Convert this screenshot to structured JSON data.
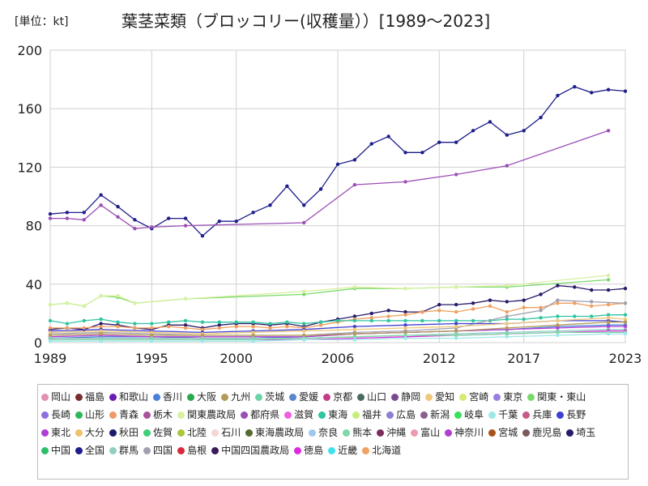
{
  "chart_data": {
    "type": "line",
    "title": "葉茎菜類（ブロッコリー(収穫量））[1989～2023]",
    "unit_label": "[単位：kt]",
    "xlim": [
      1989,
      2023
    ],
    "ylim": [
      0,
      200
    ],
    "yticks": [
      0,
      40,
      80,
      120,
      160,
      200
    ],
    "xticks": [
      1989,
      1995,
      2000,
      2006,
      2012,
      2017,
      2023
    ],
    "grid": true,
    "legend_position": "bottom",
    "legend": [
      {
        "name": "岡山",
        "color": "#e38fb0"
      },
      {
        "name": "福島",
        "color": "#7b2d2d"
      },
      {
        "name": "和歌山",
        "color": "#6a1bb0"
      },
      {
        "name": "香川",
        "color": "#4a7fd6"
      },
      {
        "name": "大阪",
        "color": "#2aa84a"
      },
      {
        "name": "九州",
        "color": "#b59a5a"
      },
      {
        "name": "茨城",
        "color": "#6ed3a6"
      },
      {
        "name": "愛媛",
        "color": "#5b86c9"
      },
      {
        "name": "京都",
        "color": "#c43d8a"
      },
      {
        "name": "山口",
        "color": "#4a6b60"
      },
      {
        "name": "静岡",
        "color": "#7a4a8f"
      },
      {
        "name": "愛知",
        "color": "#f1c77a"
      },
      {
        "name": "宮崎",
        "color": "#d8ea72"
      },
      {
        "name": "東京",
        "color": "#9b7fe0"
      },
      {
        "name": "関東・東山",
        "color": "#7ad96a"
      },
      {
        "name": "長崎",
        "color": "#8f6fe0"
      },
      {
        "name": "山形",
        "color": "#2fb85a"
      },
      {
        "name": "青森",
        "color": "#f09a6a"
      },
      {
        "name": "栃木",
        "color": "#a8539b"
      },
      {
        "name": "関東農政局",
        "color": "#d8f0a0"
      },
      {
        "name": "都府県",
        "color": "#9b4fb5"
      },
      {
        "name": "滋賀",
        "color": "#ef5fe0"
      },
      {
        "name": "東海",
        "color": "#2fc5a0"
      },
      {
        "name": "福井",
        "color": "#c8ee7a"
      },
      {
        "name": "広島",
        "color": "#8f7fd0"
      },
      {
        "name": "新潟",
        "color": "#8a5f8f"
      },
      {
        "name": "岐阜",
        "color": "#3be05a"
      },
      {
        "name": "千葉",
        "color": "#9fe8e8"
      },
      {
        "name": "兵庫",
        "color": "#c85a8a"
      },
      {
        "name": "長野",
        "color": "#3f3fd0"
      },
      {
        "name": "東北",
        "color": "#b13fd6"
      },
      {
        "name": "大分",
        "color": "#f0c070"
      },
      {
        "name": "秋田",
        "color": "#1b1b6a"
      },
      {
        "name": "佐賀",
        "color": "#3fd07a"
      },
      {
        "name": "北陸",
        "color": "#a8c83a"
      },
      {
        "name": "石川",
        "color": "#f5d5d5"
      },
      {
        "name": "東海農政局",
        "color": "#556b2f"
      },
      {
        "name": "奈良",
        "color": "#9fc8ef"
      },
      {
        "name": "熊本",
        "color": "#7fd8a8"
      },
      {
        "name": "沖縄",
        "color": "#7a2d5a"
      },
      {
        "name": "富山",
        "color": "#f09ab0"
      },
      {
        "name": "神奈川",
        "color": "#b040d0"
      },
      {
        "name": "宮城",
        "color": "#a8521a"
      },
      {
        "name": "鹿児島",
        "color": "#7a5a5a"
      },
      {
        "name": "埼玉",
        "color": "#2a1a6a"
      },
      {
        "name": "中国",
        "color": "#2fbf6a"
      },
      {
        "name": "全国",
        "color": "#1e1e8c"
      },
      {
        "name": "群馬",
        "color": "#8fd0c0"
      },
      {
        "name": "四国",
        "color": "#a0a0b0"
      },
      {
        "name": "島根",
        "color": "#d82a3a"
      },
      {
        "name": "中国四国農政局",
        "color": "#3a1a5a"
      },
      {
        "name": "徳島",
        "color": "#e02ae0"
      },
      {
        "name": "近畿",
        "color": "#40e0f0"
      },
      {
        "name": "北海道",
        "color": "#f0a060"
      }
    ],
    "series": [
      {
        "name": "全国",
        "color": "#1e1e8c",
        "x": [
          1989,
          1990,
          1991,
          1992,
          1993,
          1994,
          1995,
          1996,
          1997,
          1998,
          1999,
          2000,
          2001,
          2002,
          2003,
          2004,
          2005,
          2006,
          2007,
          2008,
          2009,
          2010,
          2011,
          2012,
          2013,
          2014,
          2015,
          2016,
          2017,
          2018,
          2019,
          2020,
          2021,
          2022,
          2023
        ],
        "y": [
          88,
          89,
          89,
          101,
          93,
          84,
          78,
          85,
          85,
          73,
          83,
          83,
          89,
          94,
          107,
          94,
          105,
          122,
          125,
          136,
          141,
          130,
          130,
          137,
          137,
          145,
          151,
          142,
          145,
          154,
          169,
          175,
          171,
          173,
          172
        ]
      },
      {
        "name": "都府県",
        "color": "#9b4fb5",
        "x": [
          1989,
          1990,
          1991,
          1992,
          1993,
          1994,
          1995,
          1997,
          2004,
          2007,
          2010,
          2013,
          2016,
          2022
        ],
        "y": [
          85,
          85,
          84,
          94,
          86,
          78,
          79,
          80,
          82,
          108,
          110,
          115,
          121,
          145
        ]
      },
      {
        "name": "関東・東山",
        "color": "#7ad96a",
        "x": [
          1989,
          1990,
          1991,
          1992,
          1993,
          1994,
          1997,
          2004,
          2007,
          2010,
          2013,
          2016,
          2022
        ],
        "y": [
          26,
          27,
          25,
          32,
          31,
          27,
          30,
          33,
          37,
          37,
          38,
          38,
          43
        ]
      },
      {
        "name": "関東農政局",
        "color": "#d8f0a0",
        "x": [
          1989,
          1990,
          1991,
          1992,
          1993,
          1994,
          1997,
          2004,
          2007,
          2010,
          2013,
          2016,
          2022
        ],
        "y": [
          26,
          27,
          25,
          32,
          32,
          27,
          30,
          35,
          38,
          37,
          38,
          39,
          46
        ]
      },
      {
        "name": "埼玉",
        "color": "#2a1a6a",
        "x": [
          1989,
          1990,
          1991,
          1992,
          1993,
          1994,
          1995,
          1996,
          1997,
          1998,
          1999,
          2000,
          2001,
          2002,
          2003,
          2004,
          2005,
          2006,
          2007,
          2008,
          2009,
          2010,
          2011,
          2012,
          2013,
          2014,
          2015,
          2016,
          2017,
          2018,
          2019,
          2020,
          2021,
          2022,
          2023
        ],
        "y": [
          9,
          10,
          9,
          13,
          12,
          10,
          9,
          12,
          12,
          10,
          12,
          13,
          13,
          12,
          13,
          11,
          14,
          16,
          18,
          20,
          22,
          21,
          21,
          26,
          26,
          27,
          29,
          28,
          29,
          33,
          39,
          38,
          36,
          36,
          37
        ]
      },
      {
        "name": "北海道",
        "color": "#f0a060",
        "x": [
          1989,
          1990,
          1991,
          1992,
          1993,
          1994,
          1995,
          1996,
          1997,
          1998,
          1999,
          2000,
          2001,
          2002,
          2003,
          2004,
          2005,
          2006,
          2007,
          2008,
          2009,
          2010,
          2011,
          2012,
          2013,
          2014,
          2015,
          2016,
          2017,
          2018,
          2019,
          2020,
          2021,
          2022,
          2023
        ],
        "y": [
          10,
          10,
          10,
          11,
          11,
          10,
          10,
          11,
          10,
          9,
          10,
          11,
          11,
          10,
          11,
          10,
          12,
          14,
          16,
          17,
          18,
          19,
          21,
          22,
          21,
          23,
          25,
          21,
          24,
          24,
          27,
          27,
          25,
          26,
          27
        ]
      },
      {
        "name": "東海",
        "color": "#2fc5a0",
        "x": [
          1989,
          1990,
          1991,
          1992,
          1993,
          1994,
          1995,
          1996,
          1997,
          1998,
          1999,
          2000,
          2001,
          2002,
          2003,
          2004,
          2005,
          2006,
          2007,
          2008,
          2009,
          2010,
          2011,
          2012,
          2013,
          2014,
          2015,
          2016,
          2017,
          2018,
          2019,
          2020,
          2021,
          2022,
          2023
        ],
        "y": [
          15,
          13,
          15,
          16,
          14,
          13,
          13,
          14,
          15,
          14,
          14,
          14,
          14,
          13,
          14,
          13,
          14,
          15,
          15,
          15,
          15,
          15,
          15,
          15,
          15,
          15,
          15,
          16,
          16,
          17,
          18,
          18,
          18,
          19,
          19
        ]
      },
      {
        "name": "四国",
        "color": "#a0a0b0",
        "x": [
          1989,
          1992,
          1995,
          1998,
          2001,
          2004,
          2007,
          2010,
          2013,
          2016,
          2018,
          2019,
          2021,
          2023
        ],
        "y": [
          6,
          7,
          6,
          5,
          5,
          5,
          7,
          8,
          10,
          18,
          22,
          29,
          28,
          27
        ]
      },
      {
        "name": "長野",
        "color": "#3f3fd0",
        "x": [
          1989,
          1992,
          1995,
          1998,
          2001,
          2004,
          2007,
          2010,
          2013,
          2016,
          2019,
          2022,
          2023
        ],
        "y": [
          8,
          9,
          8,
          7,
          8,
          9,
          11,
          12,
          13,
          13,
          15,
          15,
          14
        ]
      },
      {
        "name": "愛知",
        "color": "#f1c77a",
        "x": [
          1989,
          1992,
          1995,
          1998,
          2001,
          2004,
          2007,
          2010,
          2013,
          2016,
          2019,
          2022,
          2023
        ],
        "y": [
          7,
          8,
          7,
          6,
          7,
          8,
          9,
          10,
          11,
          13,
          15,
          17,
          16
        ]
      },
      {
        "name": "香川",
        "color": "#4a7fd6",
        "x": [
          1989,
          1992,
          1995,
          1998,
          2001,
          2004,
          2007,
          2010,
          2013,
          2016,
          2019,
          2022,
          2023
        ],
        "y": [
          3,
          4,
          4,
          3,
          3,
          4,
          6,
          7,
          8,
          9,
          11,
          12,
          12
        ]
      },
      {
        "name": "東北",
        "color": "#b13fd6",
        "x": [
          1989,
          1992,
          1995,
          1998,
          2001,
          2004,
          2007,
          2010,
          2013,
          2016,
          2019,
          2022,
          2023
        ],
        "y": [
          4,
          5,
          4,
          4,
          4,
          4,
          6,
          7,
          8,
          9,
          10,
          11,
          11
        ]
      },
      {
        "name": "九州",
        "color": "#b59a5a",
        "x": [
          1989,
          1992,
          1995,
          1998,
          2001,
          2004,
          2007,
          2010,
          2013,
          2016,
          2019,
          2022,
          2023
        ],
        "y": [
          5,
          6,
          5,
          5,
          5,
          5,
          6,
          7,
          8,
          10,
          12,
          14,
          14
        ]
      },
      {
        "name": "群馬",
        "color": "#8fd0c0",
        "x": [
          1989,
          1992,
          1995,
          1998,
          2001,
          2004,
          2007,
          2010,
          2013,
          2016,
          2019,
          2022,
          2023
        ],
        "y": [
          3,
          3,
          3,
          3,
          3,
          3,
          4,
          5,
          6,
          7,
          8,
          9,
          9
        ]
      },
      {
        "name": "徳島",
        "color": "#e02ae0",
        "x": [
          1989,
          1992,
          1995,
          1998,
          2001,
          2004,
          2007,
          2010,
          2013,
          2016,
          2019,
          2022,
          2023
        ],
        "y": [
          2,
          2,
          2,
          2,
          2,
          2,
          3,
          4,
          5,
          6,
          7,
          8,
          8
        ]
      },
      {
        "name": "熊本",
        "color": "#7fd8a8",
        "x": [
          1989,
          1992,
          1995,
          1998,
          2001,
          2004,
          2007,
          2010,
          2013,
          2016,
          2019,
          2022,
          2023
        ],
        "y": [
          2,
          2,
          2,
          2,
          2,
          3,
          4,
          5,
          5,
          6,
          7,
          7,
          7
        ]
      },
      {
        "name": "千葉",
        "color": "#9fe8e8",
        "x": [
          1989,
          1992,
          1995,
          1998,
          2001,
          2004,
          2007,
          2010,
          2013,
          2016,
          2019,
          2022,
          2023
        ],
        "y": [
          1,
          1,
          1,
          1,
          1,
          2,
          2,
          3,
          3,
          4,
          5,
          6,
          6
        ]
      }
    ]
  }
}
